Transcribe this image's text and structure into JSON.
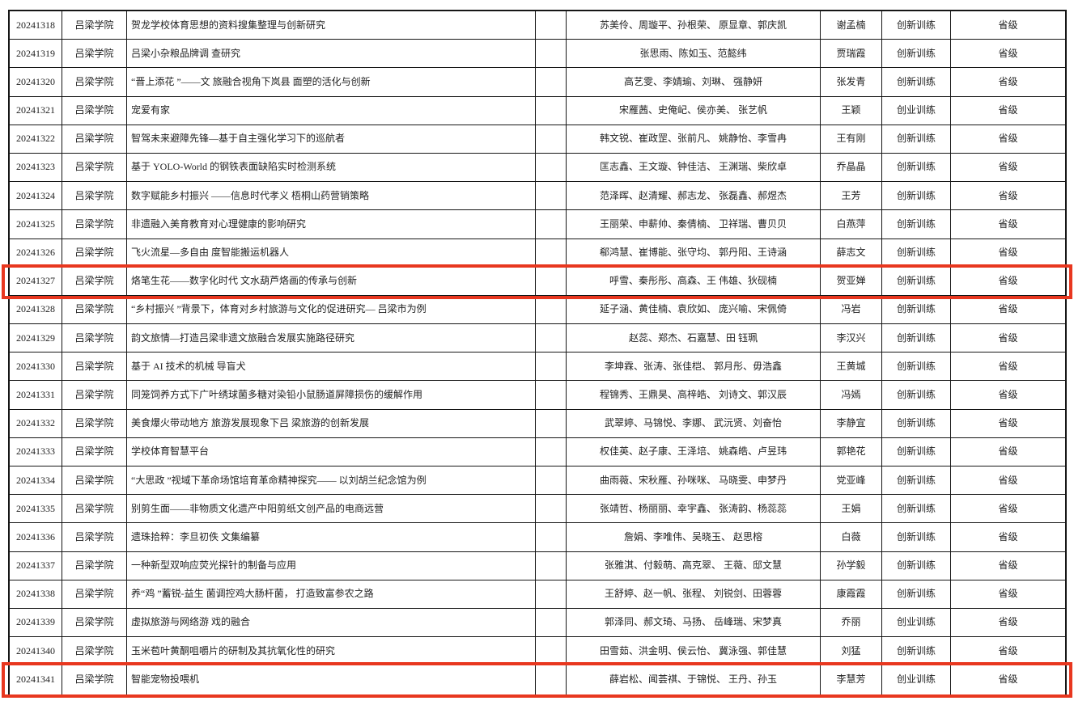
{
  "page": {
    "background": "#ffffff"
  },
  "table": {
    "colors": {
      "highlight": "#e8371f",
      "border": "#161616",
      "text": "#1f1f1f"
    },
    "highlighted_ids": [
      "20241327",
      "20241341"
    ],
    "rows": [
      {
        "id": "20241318",
        "school": "吕梁学院",
        "title": "贺龙学校体育思想的资料搜集整理与创新研究",
        "members": "苏美伶、周璇平、孙根荣、 原显章、郭庆凯",
        "advisor": "谢孟楠",
        "category": "创新训练",
        "level": "省级"
      },
      {
        "id": "20241319",
        "school": "吕梁学院",
        "title": "吕梁小杂粮品牌调 查研究",
        "members": "张思雨、陈如玉、范懿纬",
        "advisor": "贾瑞霞",
        "category": "创新训练",
        "level": "省级"
      },
      {
        "id": "20241320",
        "school": "吕梁学院",
        "title": "“晋上添花 ”——文 旅融合视角下岚县 面塑的活化与创新",
        "members": "高艺雯、李婧瑜、刘琳、 强静妍",
        "advisor": "张发青",
        "category": "创新训练",
        "level": "省级"
      },
      {
        "id": "20241321",
        "school": "吕梁学院",
        "title": "宠爱有家",
        "members": "宋雁茜、史俺屺、侯亦美、 张艺帆",
        "advisor": "王颖",
        "category": "创业训练",
        "level": "省级"
      },
      {
        "id": "20241322",
        "school": "吕梁学院",
        "title": "智驾未来避障先锋—基于自主强化学习下的巡航者",
        "members": "韩文锐、崔政罡、张前凡、 姚静怡、李雪冉",
        "advisor": "王有刚",
        "category": "创新训练",
        "level": "省级"
      },
      {
        "id": "20241323",
        "school": "吕梁学院",
        "title": "基于 YOLO-World 的钢铁表面缺陷实时检测系统",
        "members": "匡志鑫、王文璇、钟佳洁、 王渊瑞、柴欣卓",
        "advisor": "乔晶晶",
        "category": "创新训练",
        "level": "省级"
      },
      {
        "id": "20241324",
        "school": "吕梁学院",
        "title": "数字赋能乡村振兴 ——信息时代孝义 梧桐山药营销策略",
        "members": "范泽晖、赵清耀、郝志龙、 张磊鑫、郝煜杰",
        "advisor": "王芳",
        "category": "创新训练",
        "level": "省级"
      },
      {
        "id": "20241325",
        "school": "吕梁学院",
        "title": "非遗融入美育教育对心理健康的影响研究",
        "members": "王丽荣、申薪帅、秦倩楠、 卫祥瑞、曹贝贝",
        "advisor": "白燕萍",
        "category": "创新训练",
        "level": "省级"
      },
      {
        "id": "20241326",
        "school": "吕梁学院",
        "title": "飞火流星—多自由 度智能搬运机器人",
        "members": "郗鸿慧、崔博能、张守均、 郭丹阳、王诗涵",
        "advisor": "薛志文",
        "category": "创新训练",
        "level": "省级"
      },
      {
        "id": "20241327",
        "school": "吕梁学院",
        "title": "烙笔生花——数字化时代 文水葫芦烙画的传承与创新",
        "members": "呼雪、秦彤彤、高森、王 伟雄、狄砚楠",
        "advisor": "贺亚婵",
        "category": "创新训练",
        "level": "省级"
      },
      {
        "id": "20241328",
        "school": "吕梁学院",
        "title": "“乡村振兴 ”背景下，体育对乡村旅游与文化的促进研究— 吕梁市为例",
        "members": "延子涵、黄佳楠、袁欣如、 庞兴喻、宋佩倚",
        "advisor": "冯岩",
        "category": "创新训练",
        "level": "省级"
      },
      {
        "id": "20241329",
        "school": "吕梁学院",
        "title": "韵文旅情—打造吕梁非遗文旅融合发展实施路径研究",
        "members": "赵蕊、郑杰、石嘉慧、田 钰珮",
        "advisor": "李汉兴",
        "category": "创新训练",
        "level": "省级"
      },
      {
        "id": "20241330",
        "school": "吕梁学院",
        "title": "基于 AI 技术的机械 导盲犬",
        "members": "李坤霖、张涛、张佳桤、 郭月彤、毋浩鑫",
        "advisor": "王黄城",
        "category": "创新训练",
        "level": "省级"
      },
      {
        "id": "20241331",
        "school": "吕梁学院",
        "title": "同笼饲养方式下广叶绣球菌多糖对染铅小鼠肠道屏障损伤的缓解作用",
        "members": "程锦秀、王鼎昊、高梓皓、 刘诗文、郭汉辰",
        "advisor": "冯嫣",
        "category": "创新训练",
        "level": "省级"
      },
      {
        "id": "20241332",
        "school": "吕梁学院",
        "title": "美食爆火带动地方 旅游发展现象下吕 梁旅游的创新发展",
        "members": "武翠婷、马锦悦、李娜、 武沅贤、刘奋怡",
        "advisor": "李静宜",
        "category": "创新训练",
        "level": "省级"
      },
      {
        "id": "20241333",
        "school": "吕梁学院",
        "title": "学校体育智慧平台",
        "members": "权佳英、赵子康、王泽培、 姚森皓、卢昱玮",
        "advisor": "郭艳花",
        "category": "创新训练",
        "level": "省级"
      },
      {
        "id": "20241334",
        "school": "吕梁学院",
        "title": "“大思政 ”视域下革命场馆培育革命精神探究—— 以刘胡兰纪念馆为例",
        "members": "曲雨薇、宋秋雁、孙咪咪、 马晓雯、申梦丹",
        "advisor": "党亚峰",
        "category": "创新训练",
        "level": "省级"
      },
      {
        "id": "20241335",
        "school": "吕梁学院",
        "title": "别剪生面——非物质文化遗产中阳剪纸文创产品的电商远营",
        "members": "张靖哲、杨丽丽、幸宇鑫、 张涛韵、杨蕊蕊",
        "advisor": "王娟",
        "category": "创新训练",
        "level": "省级"
      },
      {
        "id": "20241336",
        "school": "吕梁学院",
        "title": "遗珠拾粹：李旦初佚 文集编纂",
        "members": "詹娟、李唯伟、吴晓玉、 赵思榕",
        "advisor": "白薇",
        "category": "创新训练",
        "level": "省级"
      },
      {
        "id": "20241337",
        "school": "吕梁学院",
        "title": "一种新型双响应荧光探针的制备与应用",
        "members": "张雅淇、付毅萌、高克翠、 王薇、邸文慧",
        "advisor": "孙学毅",
        "category": "创新训练",
        "level": "省级"
      },
      {
        "id": "20241338",
        "school": "吕梁学院",
        "title": "养“鸡 ”蓄锐-益生 菌调控鸡大肠杆菌， 打造致富参农之路",
        "members": "王舒婷、赵一帆、张程、 刘锐剑、田蓉蓉",
        "advisor": "康霞霞",
        "category": "创新训练",
        "level": "省级"
      },
      {
        "id": "20241339",
        "school": "吕梁学院",
        "title": "虚拟旅游与网络游 戏的融合",
        "members": "郭泽同、郝文琦、马扬、 岳峰瑞、宋梦真",
        "advisor": "乔丽",
        "category": "创业训练",
        "level": "省级"
      },
      {
        "id": "20241340",
        "school": "吕梁学院",
        "title": "玉米苞叶黄酮咀嚼片的研制及其抗氧化性的研究",
        "members": "田雪茹、洪金明、侯云怡、 冀泳强、郭佳慧",
        "advisor": "刘猛",
        "category": "创新训练",
        "level": "省级"
      },
      {
        "id": "20241341",
        "school": "吕梁学院",
        "title": "智能宠物投喂机",
        "members": "薛岩松、闻荟祺、于锦悦、 王丹、孙玉",
        "advisor": "李慧芳",
        "category": "创业训练",
        "level": "省级"
      }
    ]
  }
}
